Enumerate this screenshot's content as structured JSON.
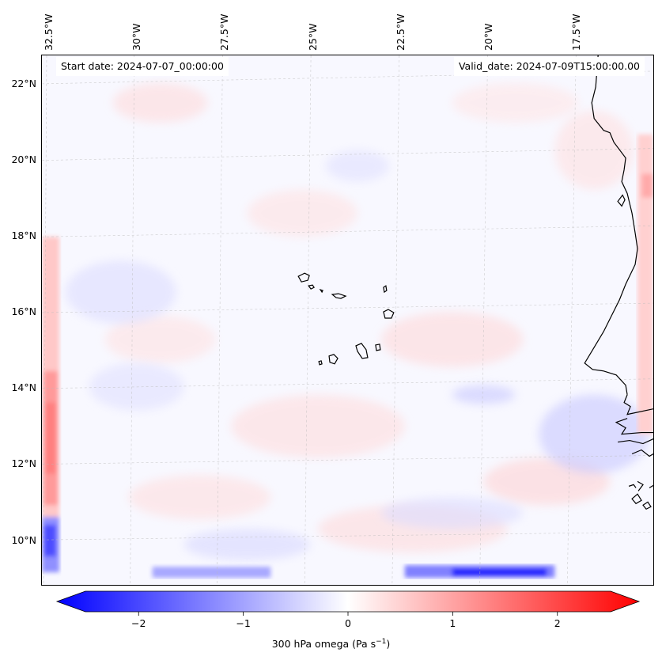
{
  "header": {
    "start_date": "Start date: 2024-07-07_00:00:00",
    "valid_date": "Valid_date: 2024-07-09T15:00:00.00"
  },
  "axes": {
    "lon_labels": [
      "32.5°W",
      "30°W",
      "27.5°W",
      "25°W",
      "22.5°W",
      "20°W",
      "17.5°W"
    ],
    "lat_labels": [
      "22°N",
      "20°N",
      "18°N",
      "16°N",
      "14°N",
      "12°N",
      "10°N"
    ]
  },
  "colorbar": {
    "label_prefix": "300 hPa omega (Pa s",
    "label_sup": "−1",
    "label_suffix": ")",
    "ticks": [
      "−2",
      "−1",
      "0",
      "1",
      "2"
    ],
    "min_color": "#0000ff",
    "mid_color": "#ffffff",
    "max_color": "#ff0000"
  },
  "map_colors": {
    "ocean_bg": "#f7f7ff",
    "coast": "#000000",
    "grid": "#bbbbbb"
  }
}
